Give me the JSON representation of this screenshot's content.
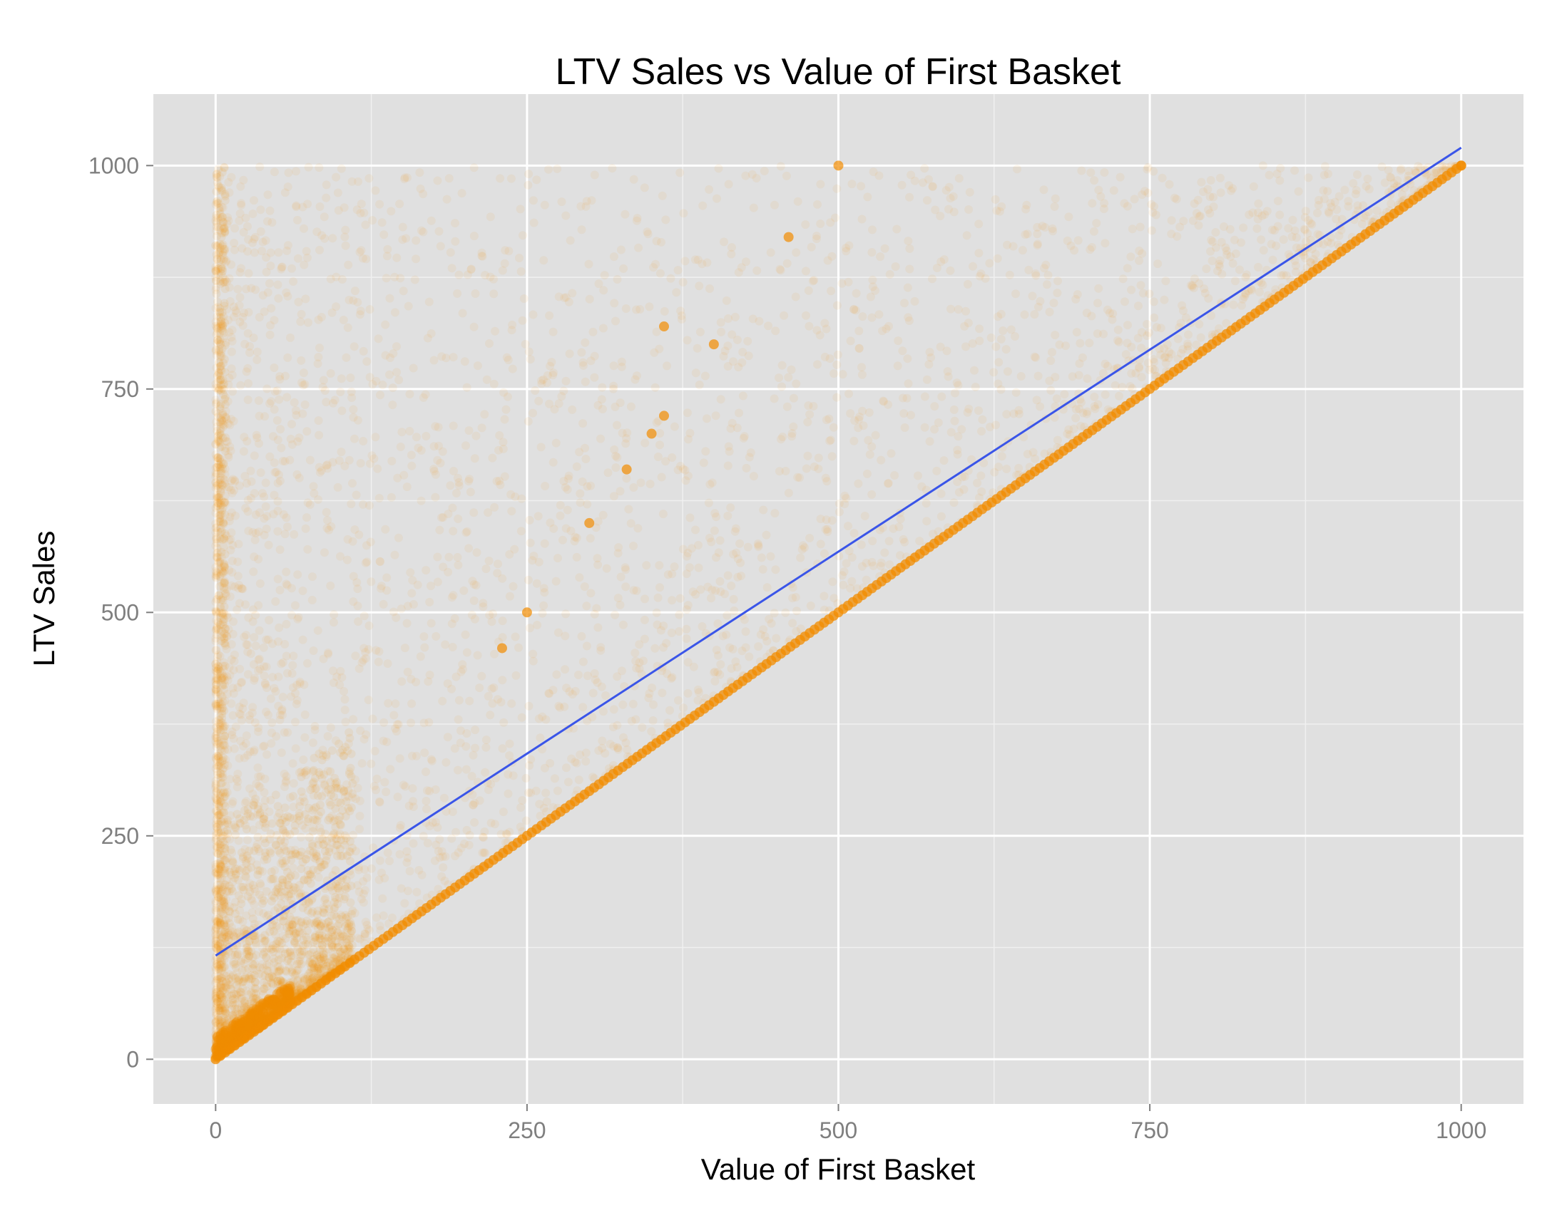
{
  "chart_data": {
    "type": "scatter",
    "title": "LTV Sales vs Value of First Basket",
    "xlabel": "Value of First Basket",
    "ylabel": "LTV Sales",
    "xlim": [
      -50,
      1050
    ],
    "ylim": [
      -50,
      1080
    ],
    "x_ticks": [
      0,
      250,
      500,
      750,
      1000
    ],
    "y_ticks": [
      0,
      250,
      500,
      750,
      1000
    ],
    "x_tick_labels": [
      "0",
      "250",
      "500",
      "750",
      "1000"
    ],
    "y_tick_labels": [
      "0",
      "250",
      "500",
      "750",
      "1000"
    ],
    "grid": true,
    "point_color": "#F28C00",
    "trend_line": {
      "color": "#3A55E8",
      "intercept": 116,
      "slope": 0.904,
      "x_range": [
        0,
        1000
      ]
    },
    "highlighted_points": [
      {
        "x": 500,
        "y": 1000
      },
      {
        "x": 400,
        "y": 800
      },
      {
        "x": 460,
        "y": 920
      },
      {
        "x": 360,
        "y": 720
      },
      {
        "x": 350,
        "y": 700
      },
      {
        "x": 300,
        "y": 600
      },
      {
        "x": 250,
        "y": 500
      },
      {
        "x": 230,
        "y": 460
      },
      {
        "x": 330,
        "y": 660
      },
      {
        "x": 360,
        "y": 820
      },
      {
        "x": 1000,
        "y": 1000
      }
    ],
    "diagonal_band": {
      "from": [
        0,
        0
      ],
      "to": [
        1000,
        1000
      ]
    }
  }
}
